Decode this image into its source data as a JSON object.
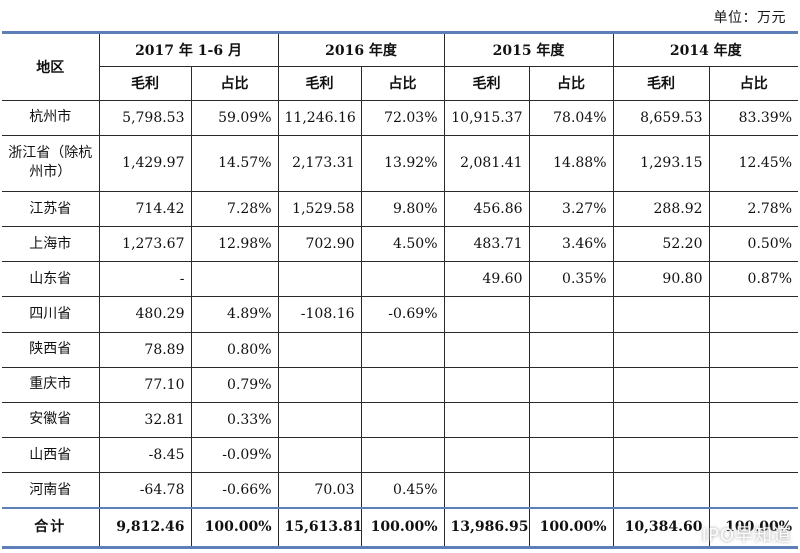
{
  "unit_label": "单位：万元",
  "header": {
    "region": "地区",
    "periods": [
      "2017 年 1-6 月",
      "2016 年度",
      "2015 年度",
      "2014 年度"
    ],
    "profit": "毛利",
    "share": "占比"
  },
  "rows": [
    {
      "region": "杭州市",
      "cells": [
        "5,798.53",
        "59.09%",
        "11,246.16",
        "72.03%",
        "10,915.37",
        "78.04%",
        "8,659.53",
        "83.39%"
      ]
    },
    {
      "region": "浙江省（除杭州市）",
      "cells": [
        "1,429.97",
        "14.57%",
        "2,173.31",
        "13.92%",
        "2,081.41",
        "14.88%",
        "1,293.15",
        "12.45%"
      ]
    },
    {
      "region": "江苏省",
      "cells": [
        "714.42",
        "7.28%",
        "1,529.58",
        "9.80%",
        "456.86",
        "3.27%",
        "288.92",
        "2.78%"
      ]
    },
    {
      "region": "上海市",
      "cells": [
        "1,273.67",
        "12.98%",
        "702.90",
        "4.50%",
        "483.71",
        "3.46%",
        "52.20",
        "0.50%"
      ]
    },
    {
      "region": "山东省",
      "cells": [
        "-",
        "",
        "",
        "",
        "49.60",
        "0.35%",
        "90.80",
        "0.87%"
      ]
    },
    {
      "region": "四川省",
      "cells": [
        "480.29",
        "4.89%",
        "-108.16",
        "-0.69%",
        "",
        "",
        "",
        ""
      ]
    },
    {
      "region": "陕西省",
      "cells": [
        "78.89",
        "0.80%",
        "",
        "",
        "",
        "",
        "",
        ""
      ]
    },
    {
      "region": "重庆市",
      "cells": [
        "77.10",
        "0.79%",
        "",
        "",
        "",
        "",
        "",
        ""
      ]
    },
    {
      "region": "安徽省",
      "cells": [
        "32.81",
        "0.33%",
        "",
        "",
        "",
        "",
        "",
        ""
      ]
    },
    {
      "region": "山西省",
      "cells": [
        "-8.45",
        "-0.09%",
        "",
        "",
        "",
        "",
        "",
        ""
      ]
    },
    {
      "region": "河南省",
      "cells": [
        "-64.78",
        "-0.66%",
        "70.03",
        "0.45%",
        "",
        "",
        "",
        ""
      ]
    }
  ],
  "total": {
    "region": "合计",
    "cells": [
      "9,812.46",
      "100.00%",
      "15,613.81",
      "100.00%",
      "13,986.95",
      "100.00%",
      "10,384.60",
      "100.00%"
    ]
  },
  "watermark": "IPO早知道"
}
